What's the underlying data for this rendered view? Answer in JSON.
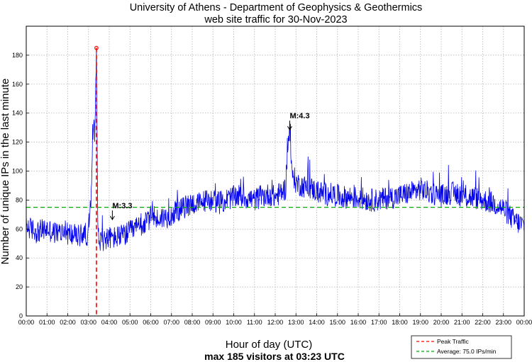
{
  "chart_data": {
    "type": "line",
    "title": "University of Athens - Department of Geophysics & Geothermics",
    "subtitle": "web site traffic for 30-Nov-2023",
    "xlabel": "Hour of day (UTC)",
    "caption": "max 185 visitors at 03:23 UTC",
    "ylabel": "Number of unique IPs in the last minute",
    "xlim": [
      0,
      24
    ],
    "ylim": [
      0,
      200
    ],
    "grid": true,
    "x_ticks": [
      "00:00",
      "01:00",
      "02:00",
      "03:00",
      "04:00",
      "05:00",
      "06:00",
      "07:00",
      "08:00",
      "09:00",
      "10:00",
      "11:00",
      "12:00",
      "13:00",
      "14:00",
      "15:00",
      "16:00",
      "17:00",
      "18:00",
      "19:00",
      "20:00",
      "21:00",
      "22:00",
      "23:00",
      "00:00"
    ],
    "y_ticks": [
      0,
      20,
      40,
      60,
      80,
      100,
      120,
      140,
      160,
      180
    ],
    "series": [
      {
        "name": "Traffic",
        "color": "#0000ee",
        "x_hours": [
          0.0,
          0.25,
          0.5,
          0.75,
          1.0,
          1.25,
          1.5,
          1.75,
          2.0,
          2.25,
          2.5,
          2.75,
          3.0,
          3.15,
          3.2,
          3.25,
          3.3,
          3.383,
          3.45,
          3.5,
          3.6,
          3.75,
          4.0,
          4.25,
          4.5,
          4.75,
          5.0,
          5.25,
          5.5,
          5.75,
          6.0,
          6.1,
          6.25,
          6.5,
          6.75,
          7.0,
          7.25,
          7.5,
          7.75,
          8.0,
          8.25,
          8.5,
          8.75,
          9.0,
          9.25,
          9.5,
          9.75,
          10.0,
          10.25,
          10.5,
          10.75,
          11.0,
          11.25,
          11.5,
          11.75,
          12.0,
          12.25,
          12.5,
          12.6,
          12.7,
          12.8,
          12.9,
          13.0,
          13.25,
          13.5,
          13.75,
          14.0,
          14.25,
          14.5,
          14.75,
          15.0,
          15.25,
          15.5,
          15.75,
          16.0,
          16.25,
          16.5,
          16.75,
          17.0,
          17.25,
          17.5,
          17.75,
          18.0,
          18.25,
          18.5,
          18.75,
          19.0,
          19.25,
          19.5,
          19.75,
          20.0,
          20.25,
          20.5,
          20.75,
          21.0,
          21.25,
          21.5,
          21.75,
          22.0,
          22.25,
          22.5,
          22.75,
          23.0,
          23.25,
          23.5,
          23.75,
          24.0
        ],
        "values": [
          62,
          60,
          58,
          59,
          60,
          58,
          57,
          58,
          57,
          56,
          55,
          57,
          56,
          85,
          125,
          135,
          128,
          185,
          60,
          52,
          52,
          53,
          54,
          54,
          55,
          56,
          58,
          60,
          62,
          64,
          68,
          72,
          66,
          68,
          68,
          70,
          72,
          74,
          76,
          78,
          77,
          79,
          80,
          80,
          78,
          79,
          81,
          82,
          83,
          82,
          81,
          80,
          82,
          83,
          84,
          82,
          85,
          88,
          118,
          128,
          98,
          96,
          92,
          90,
          89,
          88,
          86,
          85,
          84,
          84,
          83,
          82,
          82,
          82,
          81,
          81,
          80,
          80,
          80,
          81,
          82,
          82,
          83,
          84,
          85,
          86,
          88,
          86,
          85,
          84,
          83,
          84,
          85,
          84,
          83,
          82,
          82,
          81,
          80,
          79,
          78,
          76,
          74,
          70,
          66,
          64,
          62
        ]
      }
    ],
    "peak": {
      "hour": 3.383,
      "value": 185
    },
    "average": 75,
    "annotations": [
      {
        "text": "M:3.3",
        "x_hour": 4.15,
        "y_value": 66
      },
      {
        "text": "M:4.3",
        "x_hour": 12.7,
        "y_value": 128
      }
    ],
    "legend": {
      "position": "bottom-right",
      "items": [
        {
          "label": "Peak Traffic",
          "color": "#ff0000",
          "style": "dashed"
        },
        {
          "label": "Average: 75.0 IPs/min",
          "color": "#00aa00",
          "style": "dashed"
        }
      ]
    }
  }
}
